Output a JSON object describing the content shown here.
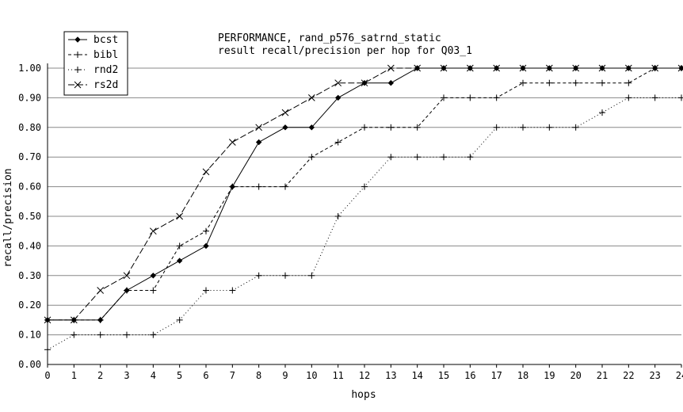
{
  "chart_data": {
    "type": "line",
    "title": "PERFORMANCE, rand_p576_satrnd_static",
    "subtitle": "result recall/precision per hop for Q03_1",
    "xlabel": "hops",
    "ylabel": "recall/precision",
    "xlim": [
      0,
      24
    ],
    "ylim": [
      0,
      1.0
    ],
    "x_ticks": [
      0,
      1,
      2,
      3,
      4,
      5,
      6,
      7,
      8,
      9,
      10,
      11,
      12,
      13,
      14,
      15,
      16,
      17,
      18,
      19,
      20,
      21,
      22,
      23,
      24
    ],
    "y_ticks": [
      "0.00",
      "0.10",
      "0.20",
      "0.30",
      "0.40",
      "0.50",
      "0.60",
      "0.70",
      "0.80",
      "0.90",
      "1.00"
    ],
    "grid": "horizontal",
    "legend_position": "top-left",
    "x": [
      0,
      1,
      2,
      3,
      4,
      5,
      6,
      7,
      8,
      9,
      10,
      11,
      12,
      13,
      14,
      15,
      16,
      17,
      18,
      19,
      20,
      21,
      22,
      23,
      24
    ],
    "series": [
      {
        "name": "bcst",
        "marker": "diamond",
        "dash": "solid",
        "values": [
          0.15,
          0.15,
          0.15,
          0.25,
          0.3,
          0.35,
          0.4,
          0.6,
          0.75,
          0.8,
          0.8,
          0.9,
          0.95,
          0.95,
          1.0,
          1.0,
          1.0,
          1.0,
          1.0,
          1.0,
          1.0,
          1.0,
          1.0,
          1.0,
          1.0
        ]
      },
      {
        "name": "bibl",
        "marker": "plus",
        "dash": "dashed",
        "values": [
          0.15,
          0.15,
          0.15,
          0.25,
          0.25,
          0.4,
          0.45,
          0.6,
          0.6,
          0.6,
          0.7,
          0.75,
          0.8,
          0.8,
          0.8,
          0.9,
          0.9,
          0.9,
          0.95,
          0.95,
          0.95,
          0.95,
          0.95,
          1.0,
          1.0
        ]
      },
      {
        "name": "rnd2",
        "marker": "plus",
        "dash": "dotted",
        "values": [
          0.05,
          0.1,
          0.1,
          0.1,
          0.1,
          0.15,
          0.25,
          0.25,
          0.3,
          0.3,
          0.3,
          0.5,
          0.6,
          0.7,
          0.7,
          0.7,
          0.7,
          0.8,
          0.8,
          0.8,
          0.8,
          0.85,
          0.9,
          0.9,
          0.9
        ]
      },
      {
        "name": "rs2d",
        "marker": "cross",
        "dash": "longdash",
        "values": [
          0.15,
          0.15,
          0.25,
          0.3,
          0.45,
          0.5,
          0.65,
          0.75,
          0.8,
          0.85,
          0.9,
          0.95,
          0.95,
          1.0,
          1.0,
          1.0,
          1.0,
          1.0,
          1.0,
          1.0,
          1.0,
          1.0,
          1.0,
          1.0,
          1.0
        ]
      }
    ]
  }
}
